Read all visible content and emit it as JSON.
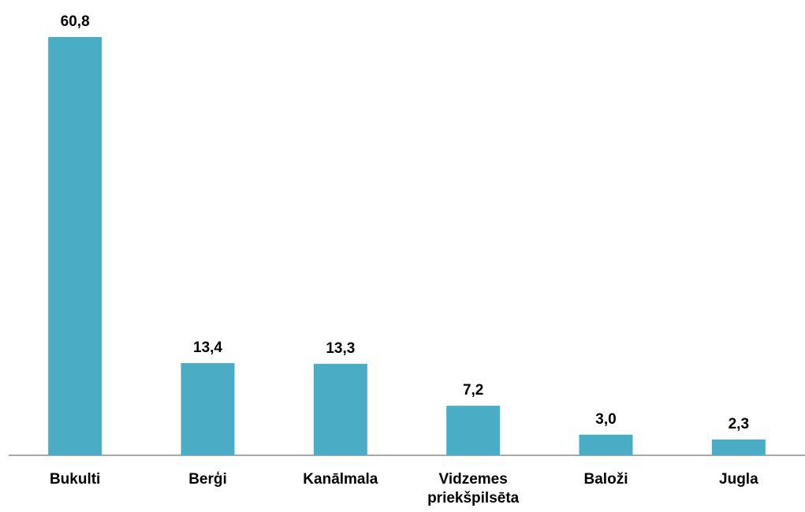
{
  "chart_data": {
    "type": "bar",
    "categories": [
      "Bukulti",
      "Berģi",
      "Kanālmala",
      "Vidzemes priekšpilsēta",
      "Baloži",
      "Jugla"
    ],
    "values": [
      60.8,
      13.4,
      13.3,
      7.2,
      3.0,
      2.3
    ],
    "value_labels": [
      "60,8",
      "13,4",
      "13,3",
      "7,2",
      "3,0",
      "2,3"
    ],
    "color": "#4bacc6"
  }
}
